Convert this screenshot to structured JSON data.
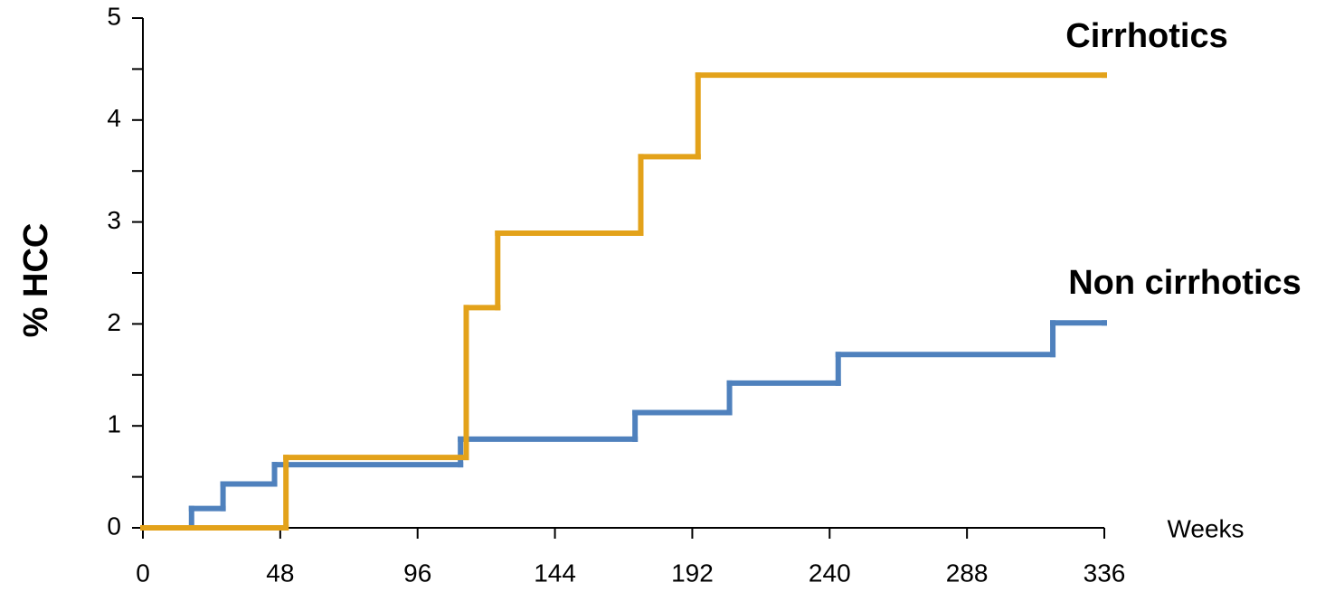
{
  "chart_data": {
    "type": "step",
    "y_label": "% HCC",
    "x_label": "Weeks",
    "xlim": [
      0,
      336
    ],
    "xticks": [
      0,
      48,
      96,
      144,
      192,
      240,
      288,
      336
    ],
    "ylim": [
      0,
      5
    ],
    "yticks": [
      0,
      1,
      2,
      3,
      4,
      5
    ],
    "yticks_minor": [
      0.5,
      1.5,
      2.5,
      3.5,
      4.5
    ],
    "series": [
      {
        "name": "Non cirrhotics",
        "color": "#4f81bd",
        "x": [
          0,
          17,
          28,
          46,
          111,
          172,
          205,
          243,
          318,
          336
        ],
        "values": [
          0,
          0.19,
          0.43,
          0.62,
          0.87,
          1.13,
          1.42,
          1.7,
          2.01,
          2.01
        ]
      },
      {
        "name": "Cirrhotics",
        "color": "#e3a21a",
        "x": [
          0,
          50,
          113,
          124,
          174,
          194,
          336
        ],
        "values": [
          0,
          0.69,
          2.16,
          2.89,
          3.64,
          4.44,
          4.44
        ]
      }
    ]
  }
}
